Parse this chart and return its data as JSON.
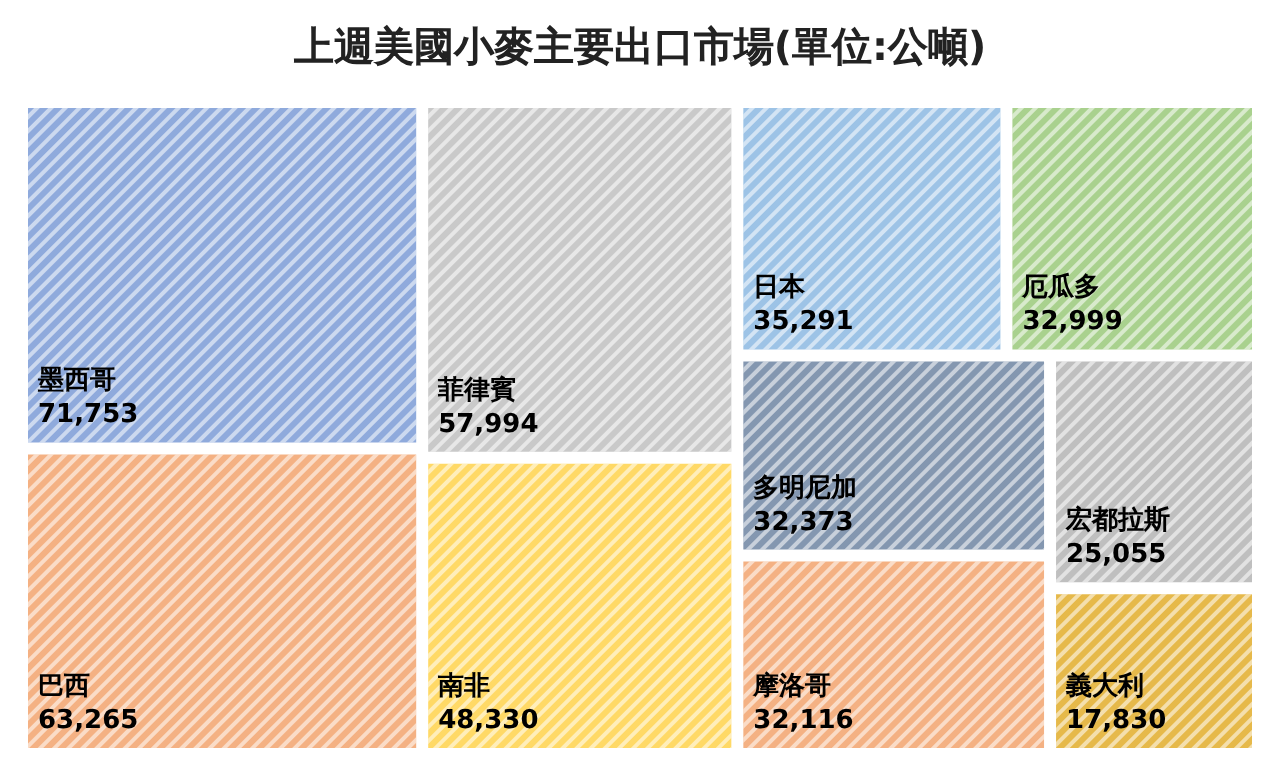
{
  "chart_data": {
    "type": "other",
    "title": "上週美國小麥主要出口市場(單位:公噸)",
    "categories": [
      "墨西哥",
      "巴西",
      "菲律賓",
      "南非",
      "日本",
      "厄瓜多",
      "多明尼加",
      "摩洛哥",
      "宏都拉斯",
      "義大利"
    ],
    "values": [
      71753,
      63265,
      57994,
      48330,
      35291,
      32999,
      32373,
      32116,
      25055,
      17830
    ],
    "colors": [
      "#8faadc",
      "#f4b183",
      "#c9c9c9",
      "#ffd966",
      "#9dc3e6",
      "#a9d18e",
      "#8497b0",
      "#f4b183",
      "#bfbfbf",
      "#e6b94a"
    ],
    "value_labels": [
      "71,753",
      "63,265",
      "57,994",
      "48,330",
      "35,291",
      "32,999",
      "32,373",
      "32,116",
      "25,055",
      "17,830"
    ]
  }
}
